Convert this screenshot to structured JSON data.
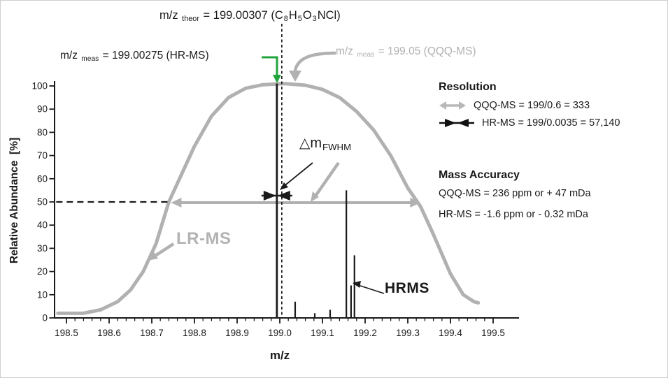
{
  "figure": {
    "colors": {
      "gray": "#b1b1b1",
      "gray_text": "#b0b0b0",
      "green": "#22a53c",
      "dark": "#1a1a1a"
    }
  },
  "annotations": {
    "theor": [
      {
        "t": "m/z "
      },
      {
        "t": "theor",
        "s": 1
      },
      {
        "t": " = 199.00307 (C"
      },
      {
        "t": "8",
        "s": 1
      },
      {
        "t": "H"
      },
      {
        "t": "5",
        "s": 1
      },
      {
        "t": "O"
      },
      {
        "t": "3",
        "s": 1
      },
      {
        "t": "NCl)"
      }
    ],
    "hr_meas": [
      {
        "t": "m/z "
      },
      {
        "t": "meas",
        "s": 1
      },
      {
        "t": " = 199.00275 (HR-MS)"
      }
    ],
    "qqq_meas": [
      {
        "t": "m/z "
      },
      {
        "t": "meas",
        "s": 1
      },
      {
        "t": " = 199.05 (QQQ-MS)"
      }
    ],
    "fwhm": [
      {
        "t": "△m"
      },
      {
        "t": "FWHM",
        "s": 1
      }
    ],
    "lrms_label": "LR-MS",
    "hrms_label": "HRMS"
  },
  "legend": {
    "resolution_title": "Resolution",
    "resolution_qqq": "QQQ-MS = 199/0.6 = 333",
    "resolution_hr": "HR-MS = 199/0.0035 = 57,140",
    "accuracy_title": "Mass Accuracy",
    "accuracy_qqq": "QQQ-MS = 236 ppm or + 47 mDa",
    "accuracy_hr": "HR-MS = -1.6 ppm or - 0.32 mDa"
  },
  "chart_data": {
    "type": "line",
    "xlabel": "m/z",
    "ylabel": "Relative Abundance  [%]",
    "xlim": [
      198.5,
      199.5
    ],
    "ylim": [
      0,
      100
    ],
    "x_ticks": [
      198.5,
      198.6,
      198.7,
      198.8,
      198.9,
      199.0,
      199.1,
      199.2,
      199.3,
      199.4,
      199.5
    ],
    "x_minor_step": 0.02,
    "y_ticks": [
      0,
      10,
      20,
      30,
      40,
      50,
      60,
      70,
      80,
      90,
      100
    ],
    "grid": false,
    "series": [
      {
        "name": "LR-MS (QQQ-MS) broad peak",
        "style": "line",
        "color": "#b1b1b1",
        "points": [
          [
            198.48,
            2
          ],
          [
            198.54,
            2
          ],
          [
            198.58,
            3.5
          ],
          [
            198.62,
            7
          ],
          [
            198.65,
            12
          ],
          [
            198.68,
            20
          ],
          [
            198.71,
            32
          ],
          [
            198.74,
            50
          ],
          [
            198.77,
            62
          ],
          [
            198.8,
            74
          ],
          [
            198.84,
            87
          ],
          [
            198.88,
            95
          ],
          [
            198.92,
            99
          ],
          [
            198.96,
            100.5
          ],
          [
            199.01,
            101
          ],
          [
            199.06,
            100.3
          ],
          [
            199.1,
            98.5
          ],
          [
            199.14,
            95
          ],
          [
            199.18,
            89
          ],
          [
            199.22,
            81
          ],
          [
            199.26,
            70
          ],
          [
            199.3,
            56
          ],
          [
            199.33,
            48
          ],
          [
            199.36,
            36
          ],
          [
            199.4,
            19
          ],
          [
            199.43,
            10
          ],
          [
            199.455,
            7
          ],
          [
            199.465,
            6.5
          ]
        ]
      },
      {
        "name": "HR-MS spectrum",
        "style": "sticks",
        "color": "#1a1a1a",
        "points": [
          {
            "mz": 199.003,
            "pct": 101,
            "main": true
          },
          {
            "mz": 199.036,
            "pct": 7
          },
          {
            "mz": 199.082,
            "pct": 2
          },
          {
            "mz": 199.118,
            "pct": 3.5
          },
          {
            "mz": 199.156,
            "pct": 55
          },
          {
            "mz": 199.167,
            "pct": 14
          },
          {
            "mz": 199.175,
            "pct": 27
          }
        ]
      }
    ],
    "guides": {
      "theor_mz": 199.00307,
      "half_max_pct": 50,
      "qqq_fwhm_da": 0.6,
      "hr_fwhm_da": 0.0035,
      "half_max_dash_span_mz": [
        198.476,
        198.738
      ],
      "fwhm_arrow_span_mz": [
        198.745,
        199.33
      ]
    }
  }
}
